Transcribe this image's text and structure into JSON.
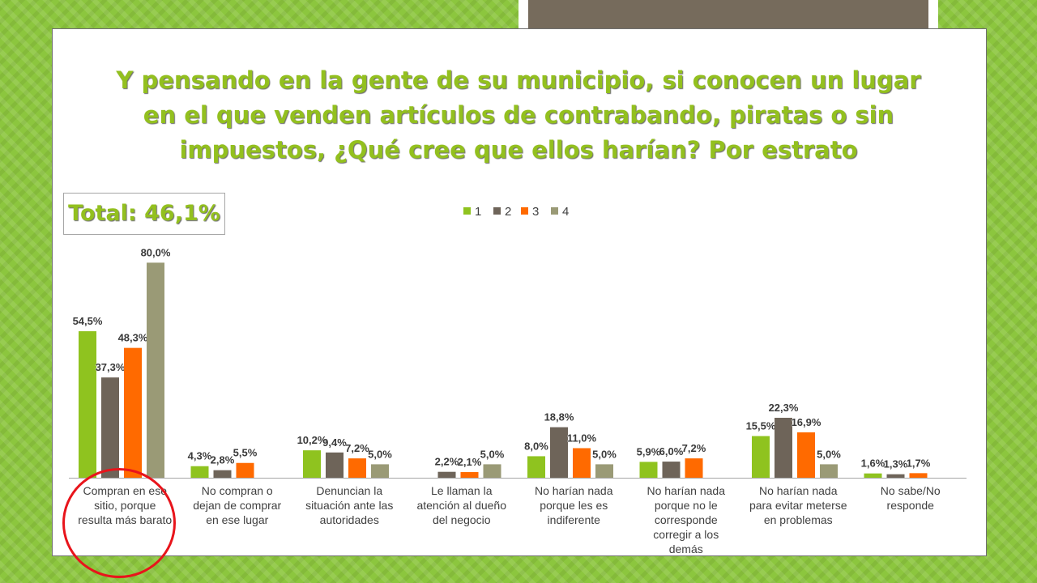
{
  "title": {
    "line1": "Y pensando en la gente de su municipio, si conocen un lugar",
    "line2": "en el que venden artículos de contrabando, piratas o sin",
    "line3": "impuestos, ¿Qué cree que ellos harían? Por estrato"
  },
  "total_label": "Total: 46,1%",
  "colors": {
    "series": [
      "#8fc31f",
      "#6e6459",
      "#ff6a00",
      "#9a9a76"
    ],
    "title": "#93c01f",
    "highlight_circle": "#e8141b"
  },
  "chart_data": {
    "type": "bar",
    "legend_position": "top",
    "categories": [
      [
        "Compran en ese",
        "sitio, porque",
        "resulta más barato"
      ],
      [
        "No compran o",
        "dejan de comprar",
        "en ese lugar"
      ],
      [
        "Denuncian la",
        "situación ante las",
        "autoridades"
      ],
      [
        "Le llaman la",
        "atención al dueño",
        "del negocio"
      ],
      [
        "No harían nada",
        "porque les es",
        "indiferente"
      ],
      [
        "No harían nada",
        "porque no le",
        "corresponde",
        "corregir a los",
        "demás"
      ],
      [
        "No harían nada",
        "para evitar meterse",
        "en problemas"
      ],
      [
        "No sabe/No",
        "responde"
      ]
    ],
    "series": [
      {
        "name": "1",
        "values": [
          54.5,
          4.3,
          10.2,
          0,
          8.0,
          5.9,
          15.5,
          1.6
        ],
        "labels": [
          "54,5%",
          "4,3%",
          "10,2%",
          "",
          "8,0%",
          "5,9%",
          "15,5%",
          "1,6%"
        ]
      },
      {
        "name": "2",
        "values": [
          37.3,
          2.8,
          9.4,
          2.2,
          18.8,
          6.0,
          22.3,
          1.3
        ],
        "labels": [
          "37,3%",
          "2,8%",
          "9,4%",
          "2,2%",
          "18,8%",
          "6,0%",
          "22,3%",
          "1,3%"
        ]
      },
      {
        "name": "3",
        "values": [
          48.3,
          5.5,
          7.2,
          2.1,
          11.0,
          7.2,
          16.9,
          1.7
        ],
        "labels": [
          "48,3%",
          "5,5%",
          "7,2%",
          "2,1%",
          "11,0%",
          "7,2%",
          "16,9%",
          "1,7%"
        ]
      },
      {
        "name": "4",
        "values": [
          80.0,
          0,
          5.0,
          5.0,
          5.0,
          0,
          5.0,
          0
        ],
        "labels": [
          "80,0%",
          "",
          "5,0%",
          "5,0%",
          "5,0%",
          "",
          "5,0%",
          ""
        ]
      }
    ],
    "ylim": [
      0,
      90
    ]
  }
}
